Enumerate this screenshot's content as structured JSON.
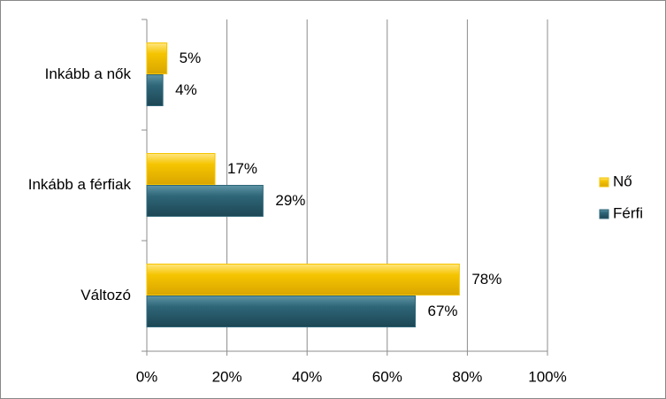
{
  "chart_data": {
    "type": "bar",
    "orientation": "horizontal",
    "categories": [
      "Inkább a nők",
      "Inkább a férfiak",
      "Változó"
    ],
    "series": [
      {
        "name": "Nő",
        "color": "#f5c400",
        "values": [
          5,
          17,
          78
        ],
        "value_labels": [
          "5%",
          "17%",
          "78%"
        ]
      },
      {
        "name": "Férfi",
        "color": "#2e6678",
        "values": [
          4,
          29,
          67
        ],
        "value_labels": [
          "4%",
          "29%",
          "67%"
        ]
      }
    ],
    "xlim": [
      0,
      100
    ],
    "xticks": [
      {
        "value": 0,
        "label": "0%"
      },
      {
        "value": 20,
        "label": "20%"
      },
      {
        "value": 40,
        "label": "40%"
      },
      {
        "value": 60,
        "label": "60%"
      },
      {
        "value": 80,
        "label": "80%"
      },
      {
        "value": 100,
        "label": "100%"
      }
    ],
    "grid": true,
    "legend": "right"
  }
}
